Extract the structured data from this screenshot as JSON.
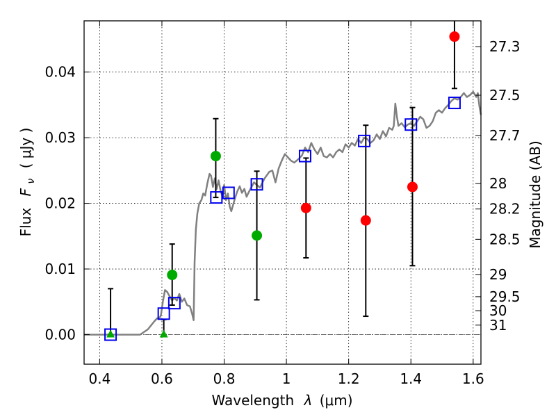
{
  "chart_data": {
    "type": "scatter",
    "xlabel_prefix": "Wavelength",
    "xlabel_symbol": "λ",
    "xlabel_unit": "(μm)",
    "ylabel_prefix": "Flux",
    "ylabel_symbol": "F",
    "ylabel_subscript": "ν",
    "ylabel_unit": "( μJy )",
    "ylabel_right": "Magnitude (AB)",
    "xlim": [
      0.35,
      1.625
    ],
    "ylim": [
      -0.0045,
      0.0478
    ],
    "grid": "dotted",
    "x_ticks": [
      {
        "value": 0.4,
        "label": "0.4"
      },
      {
        "value": 0.6,
        "label": "0.6"
      },
      {
        "value": 0.8,
        "label": "0.8"
      },
      {
        "value": 1.0,
        "label": "1"
      },
      {
        "value": 1.2,
        "label": "1.2"
      },
      {
        "value": 1.4,
        "label": "1.4"
      },
      {
        "value": 1.6,
        "label": "1.6"
      }
    ],
    "y_ticks": [
      {
        "value": 0.0,
        "label": "0.00"
      },
      {
        "value": 0.01,
        "label": "0.01"
      },
      {
        "value": 0.02,
        "label": "0.02"
      },
      {
        "value": 0.03,
        "label": "0.03"
      },
      {
        "value": 0.04,
        "label": "0.04"
      }
    ],
    "mag_ticks": [
      {
        "label": "27.3",
        "flux": 0.04387
      },
      {
        "label": "27.5",
        "flux": 0.03647
      },
      {
        "label": "27.7",
        "flux": 0.03034
      },
      {
        "label": "28",
        "flux": 0.02301
      },
      {
        "label": "28.2",
        "flux": 0.01914
      },
      {
        "label": "28.5",
        "flux": 0.01452
      },
      {
        "label": "29",
        "flux": 0.00916
      },
      {
        "label": "29.5",
        "flux": 0.00578
      },
      {
        "label": "30",
        "flux": 0.00365
      },
      {
        "label": "31",
        "flux": 0.00145
      }
    ],
    "series": [
      {
        "kind": "model-spectrum",
        "color": "#808080",
        "points": [
          [
            0.35,
            0.0
          ],
          [
            0.5,
            0.0
          ],
          [
            0.53,
            0.0
          ],
          [
            0.555,
            0.0008
          ],
          [
            0.575,
            0.002
          ],
          [
            0.585,
            0.0025
          ],
          [
            0.592,
            0.0025
          ],
          [
            0.597,
            0.003
          ],
          [
            0.603,
            0.005
          ],
          [
            0.61,
            0.0068
          ],
          [
            0.617,
            0.0065
          ],
          [
            0.625,
            0.0058
          ],
          [
            0.633,
            0.0052
          ],
          [
            0.64,
            0.0056
          ],
          [
            0.648,
            0.0052
          ],
          [
            0.656,
            0.0062
          ],
          [
            0.664,
            0.005
          ],
          [
            0.672,
            0.0055
          ],
          [
            0.681,
            0.0045
          ],
          [
            0.69,
            0.0043
          ],
          [
            0.697,
            0.0032
          ],
          [
            0.702,
            0.0022
          ],
          [
            0.705,
            0.011
          ],
          [
            0.709,
            0.016
          ],
          [
            0.714,
            0.0185
          ],
          [
            0.72,
            0.02
          ],
          [
            0.727,
            0.0205
          ],
          [
            0.733,
            0.0215
          ],
          [
            0.739,
            0.0212
          ],
          [
            0.746,
            0.023
          ],
          [
            0.753,
            0.0245
          ],
          [
            0.758,
            0.0242
          ],
          [
            0.764,
            0.0225
          ],
          [
            0.77,
            0.0238
          ],
          [
            0.776,
            0.0222
          ],
          [
            0.782,
            0.0235
          ],
          [
            0.789,
            0.0218
          ],
          [
            0.795,
            0.021
          ],
          [
            0.8,
            0.0228
          ],
          [
            0.806,
            0.0205
          ],
          [
            0.812,
            0.0215
          ],
          [
            0.818,
            0.0195
          ],
          [
            0.823,
            0.0188
          ],
          [
            0.829,
            0.0198
          ],
          [
            0.835,
            0.0208
          ],
          [
            0.842,
            0.0218
          ],
          [
            0.85,
            0.0226
          ],
          [
            0.857,
            0.0216
          ],
          [
            0.865,
            0.0222
          ],
          [
            0.872,
            0.021
          ],
          [
            0.88,
            0.0218
          ],
          [
            0.888,
            0.0225
          ],
          [
            0.896,
            0.0232
          ],
          [
            0.905,
            0.0228
          ],
          [
            0.915,
            0.0224
          ],
          [
            0.93,
            0.0238
          ],
          [
            0.945,
            0.0248
          ],
          [
            0.955,
            0.025
          ],
          [
            0.965,
            0.0232
          ],
          [
            0.975,
            0.0253
          ],
          [
            0.985,
            0.0265
          ],
          [
            0.995,
            0.0275
          ],
          [
            1.005,
            0.027
          ],
          [
            1.015,
            0.0265
          ],
          [
            1.025,
            0.0262
          ],
          [
            1.04,
            0.0268
          ],
          [
            1.05,
            0.0273
          ],
          [
            1.06,
            0.0285
          ],
          [
            1.07,
            0.0278
          ],
          [
            1.08,
            0.0292
          ],
          [
            1.09,
            0.0282
          ],
          [
            1.1,
            0.0275
          ],
          [
            1.11,
            0.0285
          ],
          [
            1.12,
            0.0272
          ],
          [
            1.13,
            0.027
          ],
          [
            1.14,
            0.0275
          ],
          [
            1.15,
            0.027
          ],
          [
            1.16,
            0.0278
          ],
          [
            1.17,
            0.0282
          ],
          [
            1.18,
            0.0278
          ],
          [
            1.19,
            0.029
          ],
          [
            1.2,
            0.0285
          ],
          [
            1.21,
            0.0292
          ],
          [
            1.22,
            0.0288
          ],
          [
            1.23,
            0.0298
          ],
          [
            1.24,
            0.0292
          ],
          [
            1.25,
            0.03
          ],
          [
            1.26,
            0.0298
          ],
          [
            1.27,
            0.0292
          ],
          [
            1.28,
            0.0296
          ],
          [
            1.29,
            0.0305
          ],
          [
            1.3,
            0.0298
          ],
          [
            1.31,
            0.031
          ],
          [
            1.32,
            0.0302
          ],
          [
            1.33,
            0.0315
          ],
          [
            1.34,
            0.0312
          ],
          [
            1.345,
            0.0318
          ],
          [
            1.35,
            0.0352
          ],
          [
            1.355,
            0.0332
          ],
          [
            1.36,
            0.0318
          ],
          [
            1.37,
            0.0322
          ],
          [
            1.38,
            0.0316
          ],
          [
            1.39,
            0.032
          ],
          [
            1.4,
            0.0322
          ],
          [
            1.41,
            0.0318
          ],
          [
            1.42,
            0.0325
          ],
          [
            1.43,
            0.0332
          ],
          [
            1.44,
            0.0328
          ],
          [
            1.45,
            0.0315
          ],
          [
            1.46,
            0.0318
          ],
          [
            1.47,
            0.0325
          ],
          [
            1.48,
            0.0338
          ],
          [
            1.49,
            0.0342
          ],
          [
            1.5,
            0.0338
          ],
          [
            1.51,
            0.0345
          ],
          [
            1.52,
            0.035
          ],
          [
            1.53,
            0.0356
          ],
          [
            1.54,
            0.036
          ],
          [
            1.55,
            0.0358
          ],
          [
            1.56,
            0.0362
          ],
          [
            1.57,
            0.0368
          ],
          [
            1.58,
            0.0362
          ],
          [
            1.59,
            0.0365
          ],
          [
            1.6,
            0.037
          ],
          [
            1.61,
            0.0362
          ],
          [
            1.615,
            0.0368
          ],
          [
            1.62,
            0.0348
          ],
          [
            1.625,
            0.0335
          ]
        ]
      },
      {
        "kind": "model-photometry",
        "color": "#0000ee",
        "marker": "open-square",
        "points": [
          [
            0.435,
            0.0
          ],
          [
            0.606,
            0.0032
          ],
          [
            0.64,
            0.0048
          ],
          [
            0.775,
            0.0209
          ],
          [
            0.814,
            0.0216
          ],
          [
            0.905,
            0.0229
          ],
          [
            1.06,
            0.0272
          ],
          [
            1.25,
            0.0295
          ],
          [
            1.4,
            0.032
          ],
          [
            1.54,
            0.0353
          ]
        ]
      },
      {
        "kind": "observed-flux-green",
        "color": "#00aa00",
        "marker": "circle",
        "points": [
          {
            "x": 0.633,
            "y": 0.0091,
            "err_low": 0.0045,
            "err_high": 0.0138
          },
          {
            "x": 0.773,
            "y": 0.0272,
            "err_low": 0.0209,
            "err_high": 0.0329
          },
          {
            "x": 0.905,
            "y": 0.0151,
            "err_low": 0.0053,
            "err_high": 0.0249
          }
        ]
      },
      {
        "kind": "observed-flux-red",
        "color": "#ff0000",
        "marker": "circle",
        "points": [
          {
            "x": 1.063,
            "y": 0.0193,
            "err_low": 0.0117,
            "err_high": 0.0269
          },
          {
            "x": 1.255,
            "y": 0.0174,
            "err_low": 0.0028,
            "err_high": 0.0319
          },
          {
            "x": 1.405,
            "y": 0.0225,
            "err_low": 0.0105,
            "err_high": 0.0346
          },
          {
            "x": 1.54,
            "y": 0.0454,
            "err_low": 0.0375,
            "err_high": 0.049
          }
        ]
      },
      {
        "kind": "upper-limits",
        "color": "#00aa00",
        "marker": "triangle",
        "points": [
          {
            "x": 0.435,
            "y": 0.0,
            "err_low": 0.0,
            "err_high": 0.007
          },
          {
            "x": 0.606,
            "y": 0.0,
            "err_low": 0.0,
            "err_high": 0.0023
          }
        ]
      }
    ],
    "zero_line": 0.0
  }
}
